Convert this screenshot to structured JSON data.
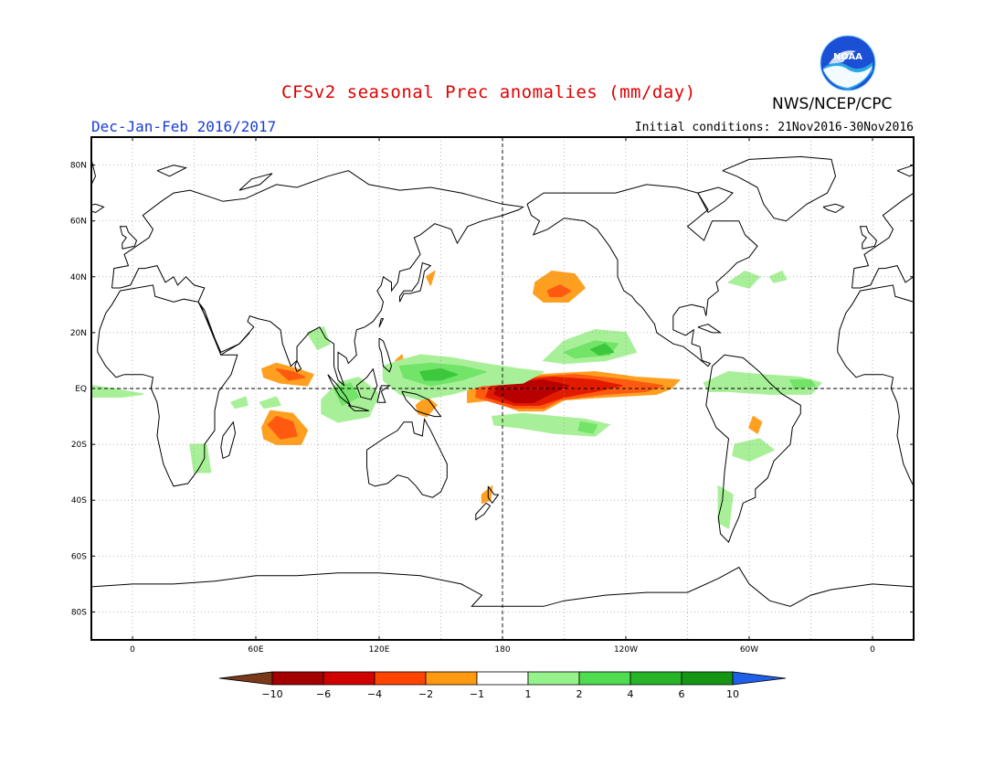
{
  "title": "CFSv2 seasonal Prec anomalies (mm/day)",
  "agency": "NWS/NCEP/CPC",
  "season": "Dec-Jan-Feb 2016/2017",
  "initial_conditions": "Initial conditions: 21Nov2016-30Nov2016",
  "logo_text": "NOAA",
  "lat_labels": [
    "80N",
    "60N",
    "40N",
    "20N",
    "EQ",
    "20S",
    "40S",
    "60S",
    "80S"
  ],
  "lon_labels": [
    "0",
    "60E",
    "120E",
    "180",
    "120W",
    "60W",
    "0"
  ],
  "colorbar": {
    "labels": [
      "-10",
      "-6",
      "-4",
      "-2",
      "-1",
      "1",
      "2",
      "4",
      "6",
      "10"
    ],
    "colors": [
      "#7a3a1a",
      "#a40000",
      "#d00000",
      "#ff4400",
      "#ff9a10",
      "#ffffff",
      "#96f28a",
      "#50dc50",
      "#28b428",
      "#149614",
      "#2060e8"
    ]
  },
  "chart_data": {
    "type": "heatmap",
    "title": "CFSv2 seasonal Prec anomalies (mm/day)",
    "subtitle": "Dec-Jan-Feb 2016/2017",
    "variable": "Precipitation anomaly",
    "units": "mm/day",
    "x_range": [
      -20,
      380
    ],
    "y_range": [
      -90,
      90
    ],
    "contour_levels": [
      -10,
      -6,
      -4,
      -2,
      -1,
      1,
      2,
      4,
      6,
      10
    ],
    "anomalies": [
      {
        "region": "Central equatorial Pacific",
        "lon": 190,
        "lat": 0,
        "value": -6
      },
      {
        "region": "North Pacific",
        "lon": 208,
        "lat": 36,
        "value": -2
      },
      {
        "region": "Eastern tropical Pacific north",
        "lon": 220,
        "lat": 6,
        "value": -2
      },
      {
        "region": "Indian Ocean south",
        "lon": 72,
        "lat": -15,
        "value": -4
      },
      {
        "region": "Indian Ocean north",
        "lon": 75,
        "lat": 5,
        "value": -2
      },
      {
        "region": "Western Pacific",
        "lon": 150,
        "lat": 5,
        "value": 4
      },
      {
        "region": "Central Pacific north",
        "lon": 215,
        "lat": 15,
        "value": 4
      },
      {
        "region": "South Pacific convergence zone",
        "lon": 200,
        "lat": -12,
        "value": 2
      },
      {
        "region": "Equatorial Atlantic",
        "lon": 330,
        "lat": 2,
        "value": 2
      }
    ]
  }
}
